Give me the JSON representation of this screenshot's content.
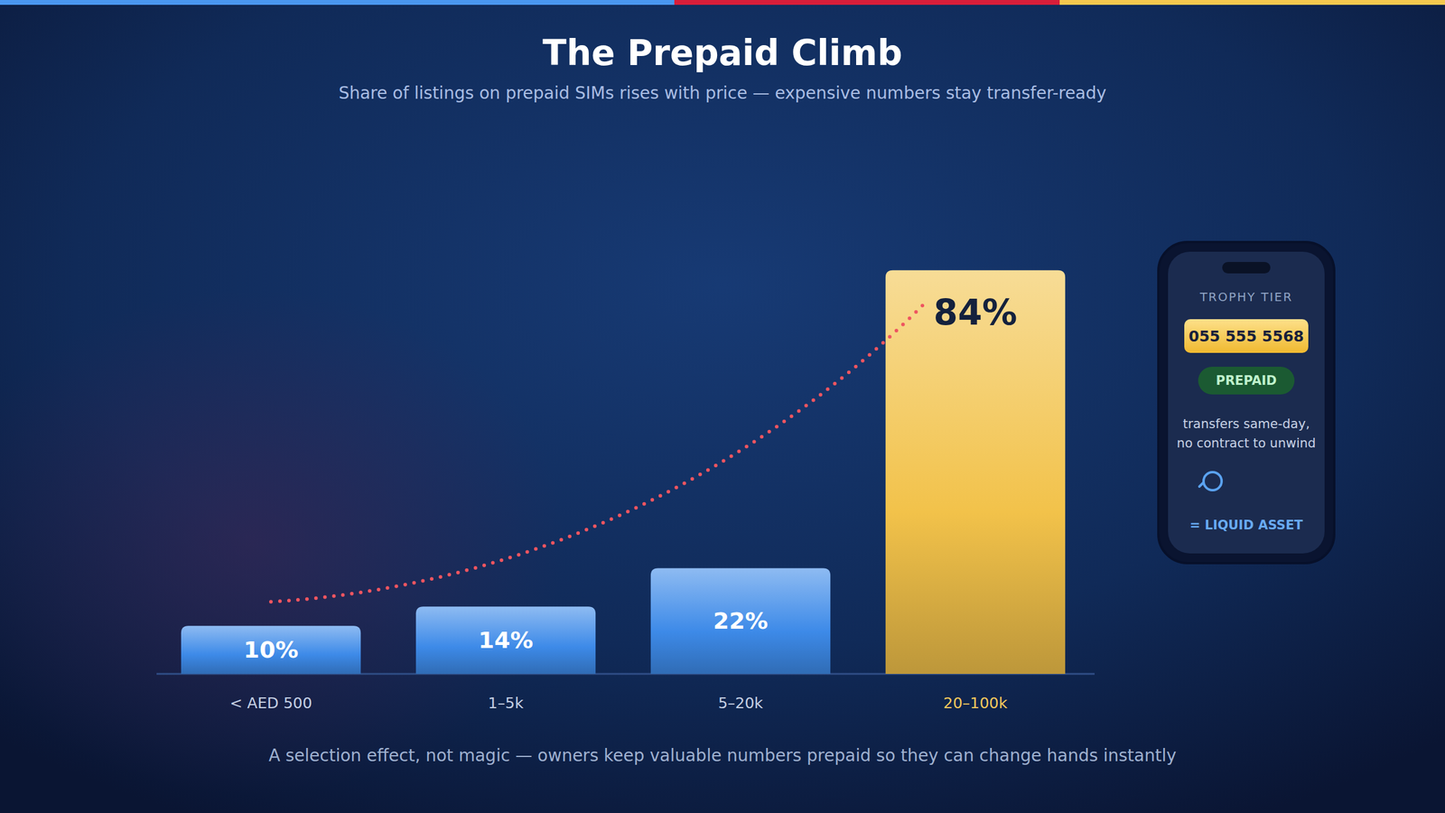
{
  "chart_data": {
    "type": "bar",
    "title": "The Prepaid Climb",
    "subtitle": "Share of listings on prepaid SIMs rises with price — expensive numbers stay transfer-ready",
    "categories": [
      "< AED 500",
      "1–5k",
      "5–20k",
      "20–100k"
    ],
    "values": [
      10,
      14,
      22,
      84
    ],
    "value_labels": [
      "10%",
      "14%",
      "22%",
      "84%"
    ],
    "colors": [
      "#3d8ae8",
      "#3d8ae8",
      "#3d8ae8",
      "#f2c24a"
    ],
    "ylim": [
      0,
      100
    ],
    "data_labels": true,
    "tick_labels": "x",
    "grid": false,
    "annotations": {
      "footnote": "A selection effect, not magic — owners keep valuable numbers prepaid so they can change hands instantly",
      "card": {
        "heading": "TROPHY TIER",
        "number": "055 555 5568",
        "badge": "PREPAID",
        "lines": [
          "transfers same-day,",
          "no contract to unwind"
        ],
        "result": "= LIQUID ASSET"
      }
    }
  }
}
